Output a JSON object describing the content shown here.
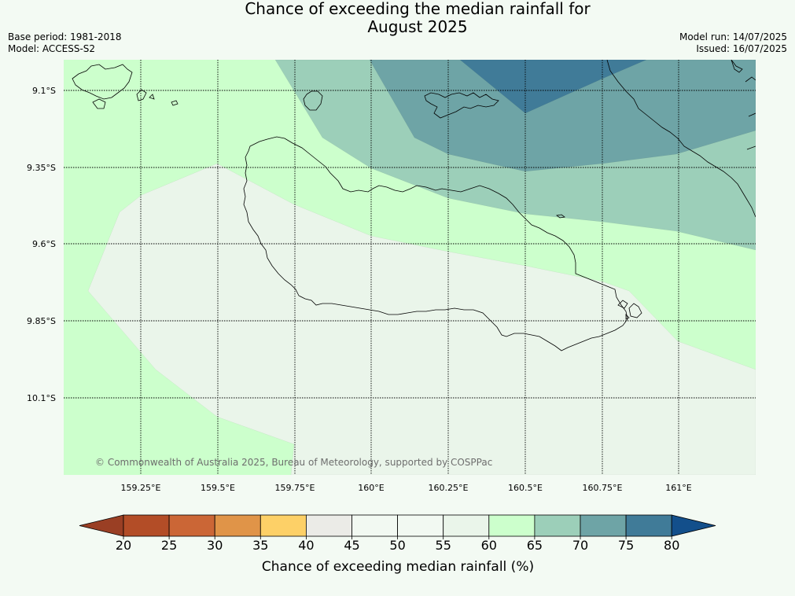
{
  "title_line1": "Chance of exceeding the median rainfall for",
  "title_line2": "August 2025",
  "meta_left": [
    "Base period: 1981-2018",
    "Model: ACCESS-S2"
  ],
  "meta_right": [
    "Model run: 14/07/2025",
    "Issued: 16/07/2025"
  ],
  "map": {
    "lat_labels": [
      "9.1°S",
      "9.35°S",
      "9.6°S",
      "9.85°S",
      "10.1°S"
    ],
    "lon_labels": [
      "159.25°E",
      "159.5°E",
      "159.75°E",
      "160°E",
      "160.25°E",
      "160.5°E",
      "160.75°E",
      "161°E"
    ],
    "copyright": "© Commonwealth of Australia 2025, Bureau of Meteorology, supported by COSPPac",
    "colors": {
      "40-45": "#ebebe7",
      "50-55": "#f2f9f2",
      "55-60": "#eaf5ea",
      "60-65": "#ccffcc",
      "65-70": "#9ccfb9",
      "70-75": "#6ea4a6",
      "75-80": "#407b98"
    }
  },
  "colorbar": {
    "tick_labels": [
      "20",
      "25",
      "30",
      "35",
      "40",
      "45",
      "50",
      "55",
      "60",
      "65",
      "70",
      "75",
      "80"
    ],
    "colors": [
      "#9a3f24",
      "#b34d27",
      "#cb6636",
      "#e09448",
      "#fdd067",
      "#ebebe7",
      "#f2f9f2",
      "#f2f9f2",
      "#eaf5ea",
      "#ccffcc",
      "#9ccfb9",
      "#6ea4a6",
      "#407b98",
      "#134f8b"
    ],
    "label": "Chance of exceeding median rainfall (%)"
  }
}
